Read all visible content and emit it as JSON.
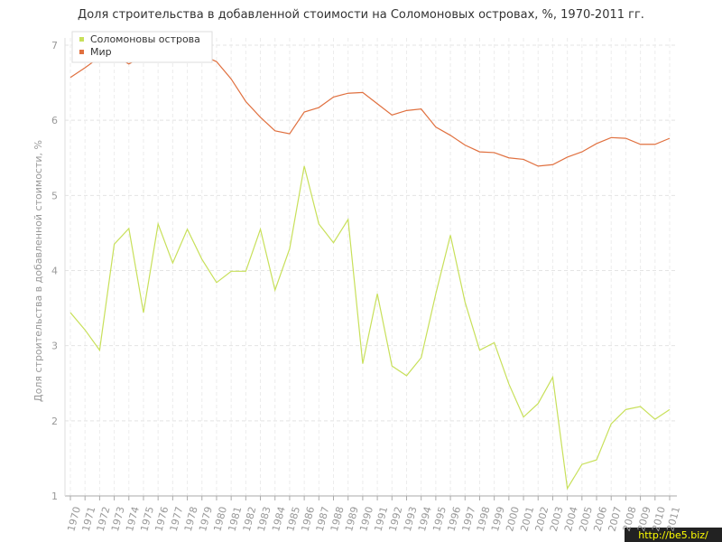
{
  "chart_data": {
    "type": "line",
    "title": "Доля строительства в добавленной стоимости на Соломоновых островах, %, 1970-2011 гг.",
    "y_label": "Доля строительства в добавленной стоимости, %",
    "watermark": "http://be5.biz/",
    "categories": [
      "1970",
      "1971",
      "1972",
      "1973",
      "1974",
      "1975",
      "1976",
      "1977",
      "1978",
      "1979",
      "1980",
      "1981",
      "1982",
      "1983",
      "1984",
      "1985",
      "1986",
      "1987",
      "1988",
      "1989",
      "1990",
      "1991",
      "1992",
      "1993",
      "1994",
      "1995",
      "1996",
      "1997",
      "1998",
      "1999",
      "2000",
      "2001",
      "2002",
      "2003",
      "2004",
      "2005",
      "2006",
      "2007",
      "2008",
      "2009",
      "2010",
      "2011"
    ],
    "series": [
      {
        "name": "Соломоновы острова",
        "color": "#c8e05a",
        "values": [
          3.44,
          3.21,
          2.94,
          4.35,
          4.56,
          3.44,
          4.62,
          4.1,
          4.55,
          4.15,
          3.84,
          3.99,
          3.99,
          4.55,
          3.74,
          4.29,
          5.39,
          4.62,
          4.37,
          4.68,
          2.76,
          3.69,
          2.73,
          2.6,
          2.84,
          3.69,
          4.47,
          3.58,
          2.94,
          3.04,
          2.49,
          2.05,
          2.23,
          2.58,
          1.1,
          1.42,
          1.48,
          1.96,
          2.15,
          2.19,
          2.02,
          2.15
        ]
      },
      {
        "name": "Мир",
        "color": "#e0703f",
        "values": [
          6.57,
          6.7,
          6.84,
          6.86,
          6.75,
          6.85,
          6.88,
          6.9,
          6.9,
          6.87,
          6.78,
          6.55,
          6.25,
          6.04,
          5.86,
          5.82,
          6.11,
          6.17,
          6.31,
          6.36,
          6.37,
          6.22,
          6.07,
          6.13,
          6.15,
          5.91,
          5.8,
          5.67,
          5.58,
          5.57,
          5.5,
          5.48,
          5.39,
          5.41,
          5.51,
          5.58,
          5.69,
          5.77,
          5.76,
          5.68,
          5.68,
          5.76
        ]
      }
    ],
    "ylim": [
      1,
      7
    ],
    "yticks": [
      1,
      2,
      3,
      4,
      5,
      6,
      7
    ],
    "grid": true
  }
}
